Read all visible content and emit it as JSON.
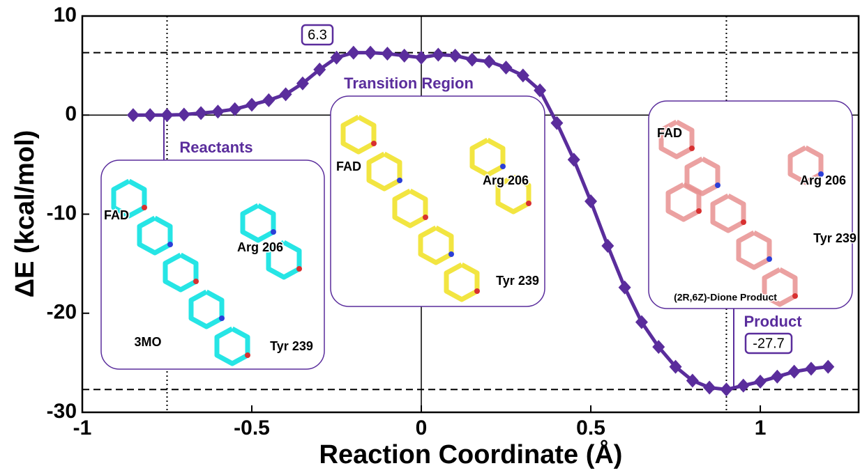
{
  "chart_data": {
    "type": "line",
    "xlabel": "Reaction Coordinate (Å)",
    "ylabel": "ΔE (kcal/mol)",
    "x": [
      -0.85,
      -0.8,
      -0.75,
      -0.7,
      -0.65,
      -0.6,
      -0.55,
      -0.5,
      -0.45,
      -0.4,
      -0.35,
      -0.3,
      -0.25,
      -0.2,
      -0.15,
      -0.1,
      -0.05,
      0,
      0.05,
      0.1,
      0.15,
      0.2,
      0.25,
      0.3,
      0.35,
      0.4,
      0.45,
      0.5,
      0.55,
      0.6,
      0.65,
      0.7,
      0.75,
      0.8,
      0.85,
      0.9,
      0.95,
      1,
      1.05,
      1.1,
      1.15,
      1.2
    ],
    "series": [
      {
        "color": "#5a2d9c",
        "values": [
          0,
          0,
          0,
          0.05,
          0.2,
          0.35,
          0.6,
          1.05,
          1.5,
          2.1,
          3.2,
          4.6,
          5.8,
          6.3,
          6.3,
          6.2,
          6.0,
          5.8,
          6.1,
          6.0,
          5.6,
          5.4,
          4.8,
          4.0,
          2.5,
          -0.8,
          -4.5,
          -8.7,
          -13.2,
          -17.4,
          -20.9,
          -23.4,
          -25.4,
          -26.8,
          -27.5,
          -27.7,
          -27.3,
          -26.9,
          -26.4,
          -25.9,
          -25.6,
          -25.4
        ]
      }
    ],
    "xlim": [
      -1,
      1.29
    ],
    "ylim": [
      -30,
      10
    ],
    "xticks": [
      -1,
      -0.5,
      0,
      0.5,
      1
    ],
    "yticks": [
      -30,
      -20,
      -10,
      0,
      10
    ],
    "hlines": [
      {
        "value": 6.3,
        "label": "6.3"
      },
      {
        "value": -27.7,
        "label": "-27.7"
      }
    ],
    "vlines": [
      -0.75,
      0.9
    ],
    "insets": [
      {
        "title": "Reactants",
        "labels": [
          "FAD",
          "Arg 206",
          "Tyr 239",
          "3MO"
        ]
      },
      {
        "title": "Transition Region",
        "labels": [
          "FAD",
          "Arg 206",
          "Tyr 239"
        ]
      },
      {
        "title": "Product",
        "labels": [
          "FAD",
          "Arg 206",
          "Tyr 239",
          "(2R,6Z)-Dione Product"
        ]
      }
    ]
  }
}
